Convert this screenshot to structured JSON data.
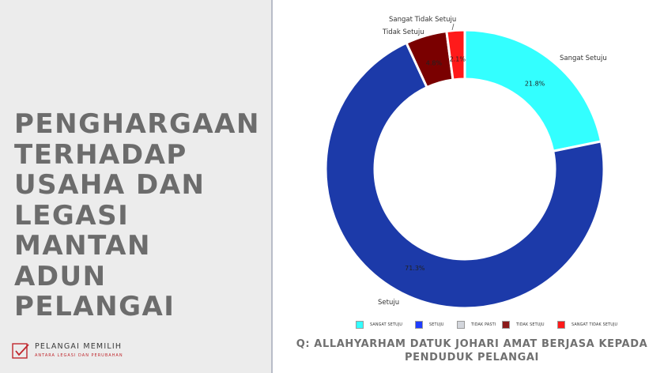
{
  "headline": "PENGHARGAAN\nTERHADAP\nUSAHA DAN\nLEGASI MANTAN\nADUN PELANGAI",
  "brand": {
    "title": "PELANGAI MEMILIH",
    "subtitle": "ANTARA LEGASI DAN PERUBAHAN"
  },
  "question": "Q: ALLAHYARHAM DATUK JOHARI AMAT BERJASA KEPADA PENDUDUK PELANGAI",
  "chart_data": {
    "type": "pie",
    "donut": true,
    "slices": [
      {
        "label": "Sangat Setuju",
        "value": 21.8,
        "value_label": "21.8%",
        "color": "#33ffff"
      },
      {
        "label": "Setuju",
        "value": 71.3,
        "value_label": "71.3%",
        "color": "#1c3aa9"
      },
      {
        "label": "Tidak Setuju",
        "value": 4.8,
        "value_label": "4.8%",
        "color": "#7a0000"
      },
      {
        "label": "Sangat Tidak Setuju",
        "value": 2.1,
        "value_label": "2.1%",
        "color": "#ff1a1a"
      }
    ],
    "legend": {
      "position": "bottom",
      "items": [
        {
          "label": "SANGAT SETUJU",
          "color": "#33ffff"
        },
        {
          "label": "SETUJU",
          "color": "#1f3dff"
        },
        {
          "label": "TIDAK PASTI",
          "color": "#d3d6dc"
        },
        {
          "label": "TIDAK SETUJU",
          "color": "#8b1a1a"
        },
        {
          "label": "SANGAT TIDAK SETUJU",
          "color": "#ff1a1a"
        }
      ]
    }
  }
}
